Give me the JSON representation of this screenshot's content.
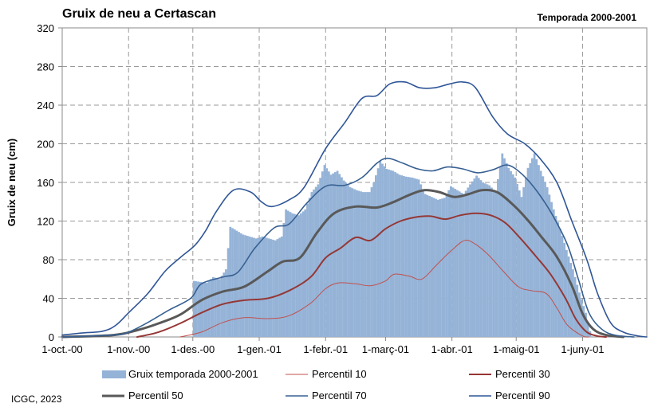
{
  "chart_data": {
    "type": "bar",
    "title": "Gruix de neu a Certascan",
    "subtitle": "Temporada 2000-2001",
    "ylabel": "Gruix de neu (cm)",
    "ylim": [
      0,
      320
    ],
    "yticks": [
      "0",
      "40",
      "80",
      "120",
      "160",
      "200",
      "240",
      "280",
      "320"
    ],
    "xlim": [
      "2000-10-01",
      "2001-07-01"
    ],
    "xticks": [
      {
        "date": "2000-10-01",
        "label": "1-oct.-00"
      },
      {
        "date": "2000-11-01",
        "label": "1-nov.-00"
      },
      {
        "date": "2000-12-01",
        "label": "1-des.-00"
      },
      {
        "date": "2001-01-01",
        "label": "1-gen.-01"
      },
      {
        "date": "2001-02-01",
        "label": "1-febr.-01"
      },
      {
        "date": "2001-03-01",
        "label": "1-març-01"
      },
      {
        "date": "2001-04-01",
        "label": "1-abr.-01"
      },
      {
        "date": "2001-05-01",
        "label": "1-maig-01"
      },
      {
        "date": "2001-06-01",
        "label": "1-juny-01"
      }
    ],
    "grid": true,
    "legend_position": "bottom",
    "bar_series": {
      "name": "Gruix temporada 2000-2001",
      "color": "#95b3d7",
      "points": [
        [
          "2000-12-01",
          58
        ],
        [
          "2000-12-04",
          57
        ],
        [
          "2000-12-07",
          56
        ],
        [
          "2000-12-10",
          62
        ],
        [
          "2000-12-13",
          60
        ],
        [
          "2000-12-16",
          70
        ],
        [
          "2000-12-18",
          114
        ],
        [
          "2000-12-21",
          110
        ],
        [
          "2000-12-24",
          106
        ],
        [
          "2000-12-27",
          104
        ],
        [
          "2000-12-30",
          102
        ],
        [
          "2001-01-02",
          104
        ],
        [
          "2001-01-05",
          102
        ],
        [
          "2001-01-08",
          100
        ],
        [
          "2001-01-11",
          104
        ],
        [
          "2001-01-13",
          132
        ],
        [
          "2001-01-16",
          128
        ],
        [
          "2001-01-19",
          126
        ],
        [
          "2001-01-22",
          132
        ],
        [
          "2001-01-25",
          150
        ],
        [
          "2001-01-28",
          158
        ],
        [
          "2001-01-31",
          178
        ],
        [
          "2001-02-03",
          168
        ],
        [
          "2001-02-06",
          172
        ],
        [
          "2001-02-09",
          162
        ],
        [
          "2001-02-12",
          155
        ],
        [
          "2001-02-15",
          152
        ],
        [
          "2001-02-18",
          150
        ],
        [
          "2001-02-21",
          150
        ],
        [
          "2001-02-23",
          160
        ],
        [
          "2001-02-26",
          182
        ],
        [
          "2001-03-01",
          174
        ],
        [
          "2001-03-04",
          172
        ],
        [
          "2001-03-07",
          168
        ],
        [
          "2001-03-10",
          166
        ],
        [
          "2001-03-13",
          165
        ],
        [
          "2001-03-16",
          163
        ],
        [
          "2001-03-19",
          148
        ],
        [
          "2001-03-22",
          145
        ],
        [
          "2001-03-25",
          142
        ],
        [
          "2001-03-28",
          144
        ],
        [
          "2001-03-31",
          156
        ],
        [
          "2001-04-03",
          152
        ],
        [
          "2001-04-06",
          148
        ],
        [
          "2001-04-09",
          158
        ],
        [
          "2001-04-12",
          167
        ],
        [
          "2001-04-15",
          160
        ],
        [
          "2001-04-18",
          157
        ],
        [
          "2001-04-21",
          150
        ],
        [
          "2001-04-24",
          190
        ],
        [
          "2001-04-27",
          175
        ],
        [
          "2001-04-30",
          165
        ],
        [
          "2001-05-03",
          145
        ],
        [
          "2001-05-06",
          175
        ],
        [
          "2001-05-09",
          190
        ],
        [
          "2001-05-12",
          172
        ],
        [
          "2001-05-15",
          155
        ],
        [
          "2001-05-18",
          132
        ],
        [
          "2001-05-21",
          112
        ],
        [
          "2001-05-24",
          90
        ],
        [
          "2001-05-27",
          70
        ],
        [
          "2001-05-30",
          46
        ],
        [
          "2001-06-02",
          25
        ],
        [
          "2001-06-04",
          6
        ],
        [
          "2001-06-05",
          0
        ]
      ]
    },
    "series": [
      {
        "name": "Percentil 10",
        "color": "#c0504d",
        "width": 1,
        "points": [
          [
            "2000-11-25",
            0
          ],
          [
            "2000-12-05",
            5
          ],
          [
            "2000-12-15",
            15
          ],
          [
            "2000-12-25",
            20
          ],
          [
            "2001-01-05",
            19
          ],
          [
            "2001-01-15",
            22
          ],
          [
            "2001-01-25",
            35
          ],
          [
            "2001-02-01",
            50
          ],
          [
            "2001-02-07",
            56
          ],
          [
            "2001-02-15",
            55
          ],
          [
            "2001-02-22",
            53
          ],
          [
            "2001-03-01",
            58
          ],
          [
            "2001-03-05",
            65
          ],
          [
            "2001-03-12",
            63
          ],
          [
            "2001-03-18",
            60
          ],
          [
            "2001-03-25",
            75
          ],
          [
            "2001-04-01",
            90
          ],
          [
            "2001-04-07",
            100
          ],
          [
            "2001-04-12",
            96
          ],
          [
            "2001-04-18",
            85
          ],
          [
            "2001-04-25",
            68
          ],
          [
            "2001-05-02",
            52
          ],
          [
            "2001-05-08",
            48
          ],
          [
            "2001-05-15",
            45
          ],
          [
            "2001-05-20",
            30
          ],
          [
            "2001-05-25",
            12
          ],
          [
            "2001-06-01",
            1
          ],
          [
            "2001-06-04",
            0
          ]
        ]
      },
      {
        "name": "Percentil 30",
        "color": "#953735",
        "width": 2,
        "points": [
          [
            "2000-11-05",
            0
          ],
          [
            "2000-11-15",
            5
          ],
          [
            "2000-11-25",
            14
          ],
          [
            "2000-12-05",
            25
          ],
          [
            "2000-12-15",
            34
          ],
          [
            "2000-12-25",
            38
          ],
          [
            "2001-01-05",
            40
          ],
          [
            "2001-01-15",
            48
          ],
          [
            "2001-01-25",
            62
          ],
          [
            "2001-02-01",
            82
          ],
          [
            "2001-02-08",
            92
          ],
          [
            "2001-02-15",
            103
          ],
          [
            "2001-02-22",
            100
          ],
          [
            "2001-03-01",
            112
          ],
          [
            "2001-03-08",
            120
          ],
          [
            "2001-03-15",
            124
          ],
          [
            "2001-03-22",
            125
          ],
          [
            "2001-03-29",
            122
          ],
          [
            "2001-04-05",
            126
          ],
          [
            "2001-04-12",
            128
          ],
          [
            "2001-04-19",
            126
          ],
          [
            "2001-04-26",
            118
          ],
          [
            "2001-05-03",
            102
          ],
          [
            "2001-05-10",
            84
          ],
          [
            "2001-05-17",
            65
          ],
          [
            "2001-05-24",
            40
          ],
          [
            "2001-05-29",
            18
          ],
          [
            "2001-06-03",
            5
          ],
          [
            "2001-06-08",
            1
          ],
          [
            "2001-06-12",
            0
          ]
        ]
      },
      {
        "name": "Percentil 50",
        "color": "#595959",
        "width": 3,
        "points": [
          [
            "2000-10-01",
            0
          ],
          [
            "2000-10-25",
            2
          ],
          [
            "2000-11-05",
            7
          ],
          [
            "2000-11-15",
            14
          ],
          [
            "2000-11-25",
            23
          ],
          [
            "2000-12-05",
            38
          ],
          [
            "2000-12-15",
            47
          ],
          [
            "2000-12-25",
            52
          ],
          [
            "2001-01-05",
            68
          ],
          [
            "2001-01-12",
            78
          ],
          [
            "2001-01-20",
            82
          ],
          [
            "2001-01-28",
            108
          ],
          [
            "2001-02-05",
            128
          ],
          [
            "2001-02-15",
            135
          ],
          [
            "2001-02-25",
            134
          ],
          [
            "2001-03-05",
            140
          ],
          [
            "2001-03-12",
            147
          ],
          [
            "2001-03-19",
            152
          ],
          [
            "2001-03-26",
            150
          ],
          [
            "2001-04-02",
            145
          ],
          [
            "2001-04-09",
            148
          ],
          [
            "2001-04-15",
            152
          ],
          [
            "2001-04-22",
            150
          ],
          [
            "2001-04-29",
            138
          ],
          [
            "2001-05-06",
            122
          ],
          [
            "2001-05-13",
            103
          ],
          [
            "2001-05-20",
            83
          ],
          [
            "2001-05-27",
            53
          ],
          [
            "2001-06-01",
            24
          ],
          [
            "2001-06-06",
            8
          ],
          [
            "2001-06-12",
            2
          ],
          [
            "2001-06-20",
            0
          ]
        ]
      },
      {
        "name": "Percentil 70",
        "color": "#376092",
        "width": 1.6,
        "points": [
          [
            "2000-10-01",
            0
          ],
          [
            "2000-10-25",
            2
          ],
          [
            "2000-11-01",
            5
          ],
          [
            "2000-11-10",
            15
          ],
          [
            "2000-11-20",
            28
          ],
          [
            "2000-11-30",
            40
          ],
          [
            "2000-12-05",
            55
          ],
          [
            "2000-12-15",
            62
          ],
          [
            "2000-12-22",
            67
          ],
          [
            "2000-12-30",
            92
          ],
          [
            "2001-01-08",
            113
          ],
          [
            "2001-01-15",
            117
          ],
          [
            "2001-01-23",
            138
          ],
          [
            "2001-02-01",
            156
          ],
          [
            "2001-02-10",
            157
          ],
          [
            "2001-02-18",
            165
          ],
          [
            "2001-02-25",
            180
          ],
          [
            "2001-03-02",
            185
          ],
          [
            "2001-03-09",
            180
          ],
          [
            "2001-03-16",
            174
          ],
          [
            "2001-03-23",
            172
          ],
          [
            "2001-03-30",
            176
          ],
          [
            "2001-04-06",
            174
          ],
          [
            "2001-04-13",
            170
          ],
          [
            "2001-04-20",
            173
          ],
          [
            "2001-04-27",
            178
          ],
          [
            "2001-05-04",
            168
          ],
          [
            "2001-05-11",
            150
          ],
          [
            "2001-05-18",
            126
          ],
          [
            "2001-05-25",
            95
          ],
          [
            "2001-05-30",
            60
          ],
          [
            "2001-06-04",
            25
          ],
          [
            "2001-06-10",
            8
          ],
          [
            "2001-06-16",
            2
          ],
          [
            "2001-06-25",
            0
          ]
        ]
      },
      {
        "name": "Percentil 90",
        "color": "#2f5597",
        "width": 1.6,
        "points": [
          [
            "2000-10-01",
            2
          ],
          [
            "2000-10-10",
            4
          ],
          [
            "2000-10-20",
            6
          ],
          [
            "2000-10-26",
            12
          ],
          [
            "2000-11-01",
            25
          ],
          [
            "2000-11-10",
            45
          ],
          [
            "2000-11-18",
            68
          ],
          [
            "2000-11-25",
            82
          ],
          [
            "2000-12-02",
            95
          ],
          [
            "2000-12-07",
            110
          ],
          [
            "2000-12-12",
            130
          ],
          [
            "2000-12-20",
            152
          ],
          [
            "2000-12-28",
            150
          ],
          [
            "2001-01-02",
            140
          ],
          [
            "2001-01-07",
            135
          ],
          [
            "2001-01-15",
            142
          ],
          [
            "2001-01-22",
            155
          ],
          [
            "2001-02-01",
            195
          ],
          [
            "2001-02-10",
            222
          ],
          [
            "2001-02-18",
            247
          ],
          [
            "2001-02-25",
            250
          ],
          [
            "2001-03-03",
            262
          ],
          [
            "2001-03-10",
            264
          ],
          [
            "2001-03-17",
            258
          ],
          [
            "2001-03-24",
            258
          ],
          [
            "2001-03-31",
            262
          ],
          [
            "2001-04-06",
            264
          ],
          [
            "2001-04-12",
            258
          ],
          [
            "2001-04-20",
            228
          ],
          [
            "2001-04-27",
            210
          ],
          [
            "2001-05-05",
            200
          ],
          [
            "2001-05-12",
            185
          ],
          [
            "2001-05-20",
            160
          ],
          [
            "2001-05-27",
            120
          ],
          [
            "2001-06-03",
            80
          ],
          [
            "2001-06-08",
            45
          ],
          [
            "2001-06-14",
            15
          ],
          [
            "2001-06-20",
            5
          ],
          [
            "2001-06-27",
            1
          ],
          [
            "2001-07-01",
            0
          ]
        ]
      }
    ]
  },
  "credit": "ICGC, 2023"
}
